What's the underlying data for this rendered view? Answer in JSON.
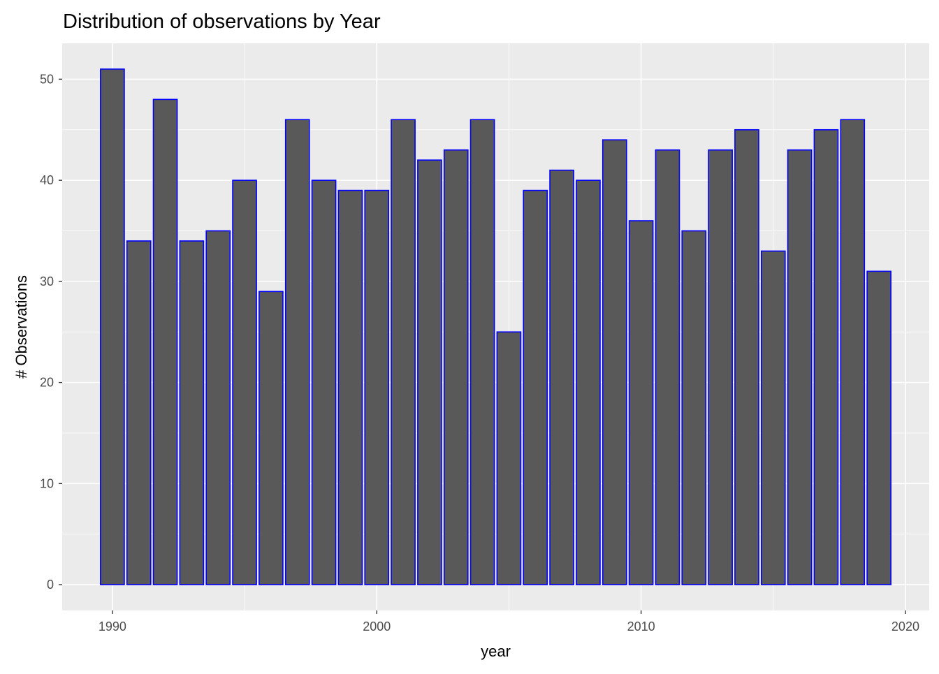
{
  "chart_data": {
    "type": "bar",
    "title": "Distribution of observations by Year",
    "xlabel": "year",
    "ylabel": "# Observations",
    "x": [
      1990,
      1991,
      1992,
      1993,
      1994,
      1995,
      1996,
      1997,
      1998,
      1999,
      2000,
      2001,
      2002,
      2003,
      2004,
      2005,
      2006,
      2007,
      2008,
      2009,
      2010,
      2011,
      2012,
      2013,
      2014,
      2015,
      2016,
      2017,
      2018,
      2019
    ],
    "values": [
      51,
      34,
      48,
      34,
      35,
      40,
      29,
      46,
      40,
      39,
      39,
      46,
      42,
      43,
      46,
      25,
      39,
      41,
      40,
      44,
      36,
      43,
      35,
      43,
      45,
      33,
      43,
      45,
      46,
      31
    ],
    "xlim": [
      1988.1,
      2020.9
    ],
    "ylim": [
      -2.55,
      53.55
    ],
    "xticks": [
      "1990",
      "2000",
      "2010",
      "2020"
    ],
    "yticks": [
      "0",
      "10",
      "20",
      "30",
      "40",
      "50"
    ],
    "grid": true,
    "legend": "none",
    "colors": {
      "panel_background": "#EBEBEB",
      "grid": "#FFFFFF",
      "bar_fill": "#595959",
      "bar_outline": "#0000FF"
    }
  }
}
